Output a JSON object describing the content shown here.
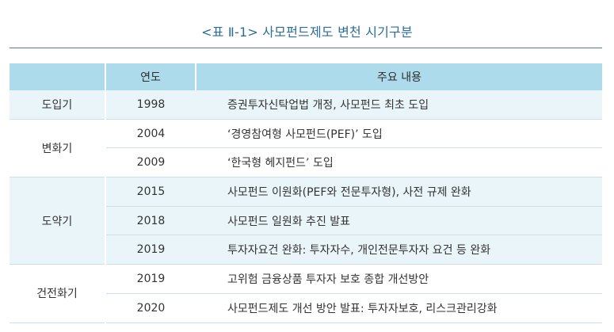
{
  "title": "<표 Ⅱ-1> 사모펀드제도 변천 시기구분",
  "table": {
    "headers": [
      "",
      "연도",
      "주요 내용"
    ],
    "groups": [
      {
        "period": "도입기",
        "rows": [
          {
            "year": "1998",
            "content": "증권투자신탁업법 개정, 사모펀드 최초 도입"
          }
        ]
      },
      {
        "period": "변화기",
        "rows": [
          {
            "year": "2004",
            "content": "‘경영참여형 사모펀드(PEF)’ 도입"
          },
          {
            "year": "2009",
            "content": "‘한국형 헤지펀드’ 도입"
          }
        ]
      },
      {
        "period": "도약기",
        "rows": [
          {
            "year": "2015",
            "content": "사모펀드 이원화(PEF와 전문투자형), 사전 규제 완화"
          },
          {
            "year": "2018",
            "content": "사모펀드 일원화 추진 발표"
          },
          {
            "year": "2019",
            "content": "투자자요건 완화: 투자자수, 개인전문투자자 요건 등 완화"
          }
        ]
      },
      {
        "period": "건전화기",
        "rows": [
          {
            "year": "2019",
            "content": "고위험 금융상품 투자자 보호 종합 개선방안"
          },
          {
            "year": "2020",
            "content": "사모펀드제도 개선 방안 발표: 투자자보호, 리스크관리강화"
          }
        ]
      }
    ]
  }
}
